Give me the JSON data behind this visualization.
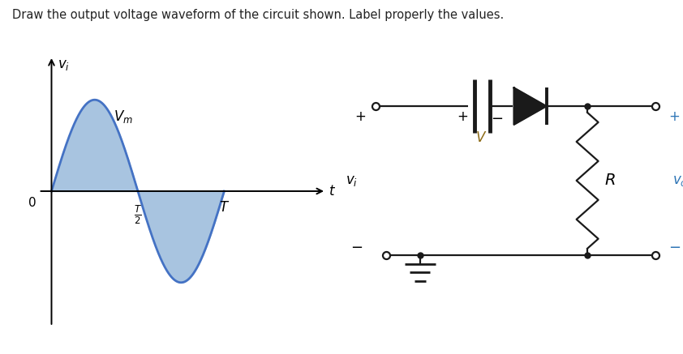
{
  "title": "Draw the output voltage waveform of the circuit shown. Label properly the values.",
  "title_fontsize": 10.5,
  "wave_color": "#4472C4",
  "wave_fill_color": "#A8C4E0",
  "wave_linewidth": 2.0,
  "bg_color": "#ffffff",
  "axis_color": "#000000",
  "label_fontsize": 12,
  "Vm": 1.0,
  "T": 2.0,
  "circuit_line_color": "#1a1a1a",
  "vo_color": "#2E75B6",
  "vi_color": "#000000",
  "V_label_color": "#8B6914"
}
